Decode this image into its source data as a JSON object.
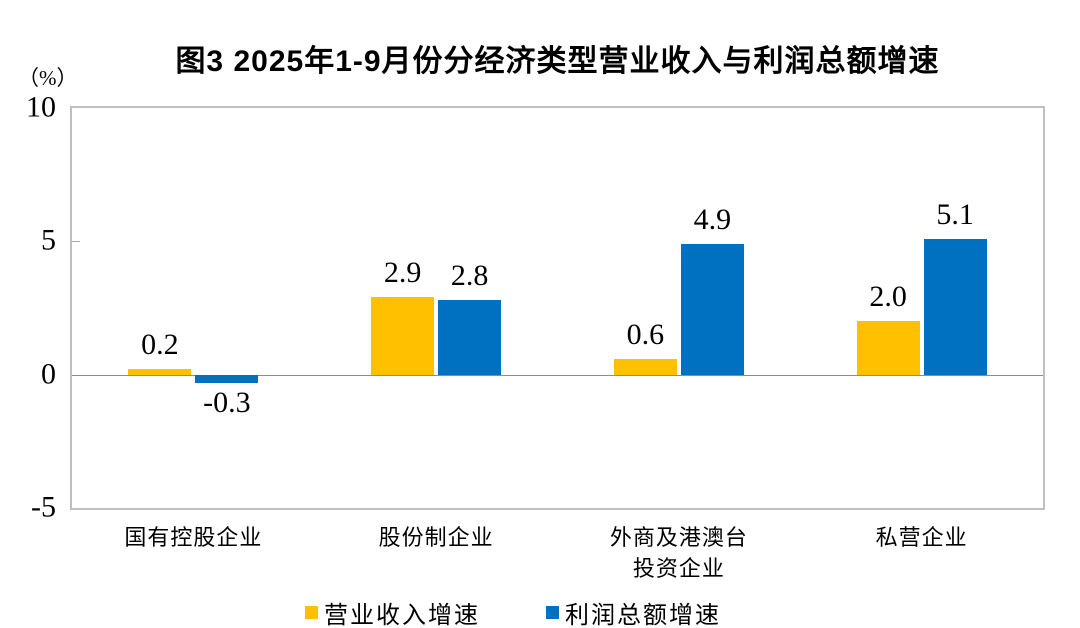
{
  "chart_data": {
    "type": "bar",
    "title": "图3 2025年1-9月份分经济类型营业收入与利润总额增速",
    "unit_label": "（%）",
    "categories": [
      "国有控股企业",
      "股份制企业",
      "外商及港澳台\n投资企业",
      "私营企业"
    ],
    "series": [
      {
        "name": "营业收入增速",
        "color": "#FFC000",
        "values": [
          0.2,
          2.9,
          0.6,
          2.0
        ]
      },
      {
        "name": "利润总额增速",
        "color": "#0070C0",
        "values": [
          -0.3,
          2.8,
          4.9,
          5.1
        ]
      }
    ],
    "ylim": [
      -5,
      10
    ],
    "yticks": [
      10,
      5,
      0,
      -5
    ],
    "value_label_decimals": 1,
    "grid": false,
    "legend_position": "bottom",
    "axis_border_color": "#BFBFBF",
    "zero_line_color": "#8C8C8C",
    "tick_color": "#A6A6A6",
    "text_color": "#000000",
    "background_color": "#FFFFFF"
  }
}
